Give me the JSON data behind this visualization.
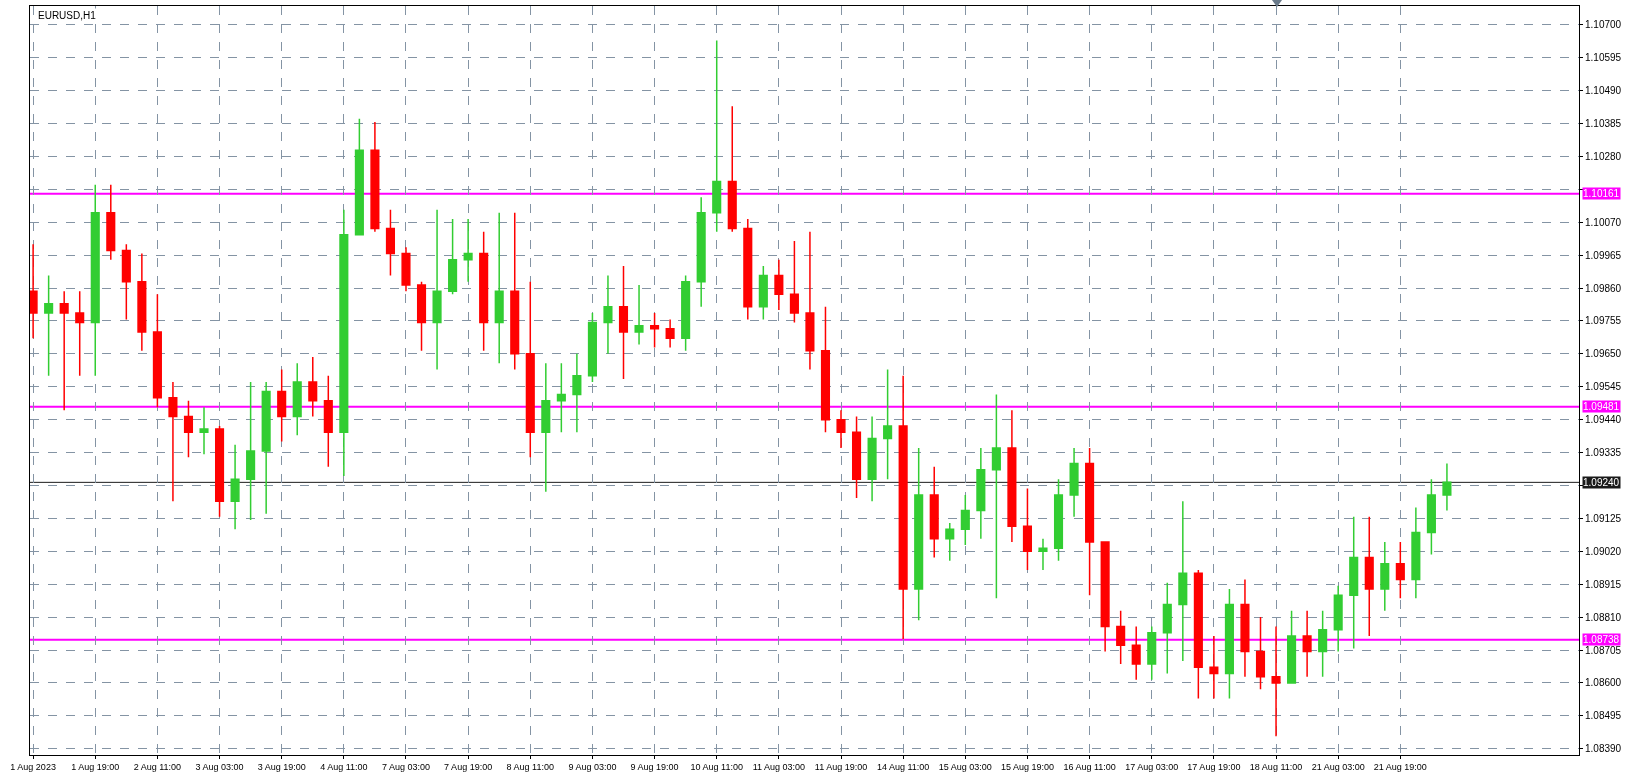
{
  "chart_data": {
    "type": "candlestick",
    "title": "EURUSD,H1",
    "categories": [
      "1 Aug 2023",
      null,
      null,
      null,
      "1 Aug 19:00",
      null,
      null,
      null,
      "2 Aug 11:00",
      null,
      null,
      null,
      "3 Aug 03:00",
      null,
      null,
      null,
      "3 Aug 19:00",
      null,
      null,
      null,
      "4 Aug 11:00",
      null,
      null,
      null,
      "7 Aug 03:00",
      null,
      null,
      null,
      "7 Aug 19:00",
      null,
      null,
      null,
      "8 Aug 11:00",
      null,
      null,
      null,
      "9 Aug 03:00",
      null,
      null,
      null,
      "9 Aug 19:00",
      null,
      null,
      null,
      "10 Aug 11:00",
      null,
      null,
      null,
      "11 Aug 03:00",
      null,
      null,
      null,
      "11 Aug 19:00",
      null,
      null,
      null,
      "14 Aug 11:00",
      null,
      null,
      null,
      "15 Aug 03:00",
      null,
      null,
      null,
      "15 Aug 19:00",
      null,
      null,
      null,
      "16 Aug 11:00",
      null,
      null,
      null,
      "17 Aug 03:00",
      null,
      null,
      null,
      "17 Aug 19:00",
      null,
      null,
      null,
      "18 Aug 11:00",
      null,
      null,
      null,
      "21 Aug 03:00",
      null,
      null,
      null,
      "21 Aug 19:00",
      null,
      null,
      null,
      null,
      null,
      null,
      null,
      null,
      null,
      null,
      null
    ],
    "ohlc": [
      [
        1.0985,
        1.1,
        1.097,
        1.0978
      ],
      [
        1.0978,
        1.099,
        1.0958,
        1.0981
      ],
      [
        1.0981,
        1.0985,
        1.0947,
        1.0978
      ],
      [
        1.0978,
        1.0985,
        1.0958,
        1.0975
      ],
      [
        1.0975,
        1.1019,
        1.0958,
        1.101
      ],
      [
        1.101,
        1.1019,
        1.0995,
        1.0998
      ],
      [
        1.0998,
        1.1,
        1.0976,
        1.0988
      ],
      [
        1.0988,
        1.0997,
        1.0966,
        1.0972
      ],
      [
        1.0972,
        1.0984,
        1.0948,
        1.0951
      ],
      [
        1.0951,
        1.0956,
        1.0918,
        1.0945
      ],
      [
        1.0945,
        1.095,
        1.0932,
        1.094
      ],
      [
        1.094,
        1.0948,
        1.0933,
        1.0941
      ],
      [
        1.0941,
        1.0942,
        1.0913,
        1.0918
      ],
      [
        1.0918,
        1.0936,
        1.0909,
        1.0925
      ],
      [
        1.0925,
        1.0956,
        1.0912,
        1.0934
      ],
      [
        1.0934,
        1.0956,
        1.0914,
        1.0953
      ],
      [
        1.0953,
        1.096,
        1.0937,
        1.0945
      ],
      [
        1.0945,
        1.0962,
        1.0939,
        1.0956
      ],
      [
        1.0956,
        1.0964,
        1.0945,
        1.095
      ],
      [
        1.095,
        1.0958,
        1.0929,
        1.094
      ],
      [
        1.094,
        1.1011,
        1.0926,
        1.1003
      ],
      [
        1.1003,
        1.104,
        1.1003,
        1.103
      ],
      [
        1.103,
        1.1039,
        1.1004,
        1.1005
      ],
      [
        1.1005,
        1.1011,
        1.099,
        1.0997
      ],
      [
        1.0997,
        1.0999,
        1.0985,
        1.0987
      ],
      [
        1.0987,
        1.0988,
        1.0966,
        1.0975
      ],
      [
        1.0975,
        1.1011,
        1.096,
        1.0985
      ],
      [
        1.0985,
        1.1008,
        1.0984,
        1.0995
      ],
      [
        1.0995,
        1.1008,
        1.0988,
        1.0997
      ],
      [
        1.0997,
        1.1004,
        1.0966,
        1.0975
      ],
      [
        1.0975,
        1.101,
        1.0962,
        1.0985
      ],
      [
        1.0985,
        1.101,
        1.096,
        1.0965
      ],
      [
        1.0965,
        1.0988,
        1.0932,
        1.094
      ],
      [
        1.094,
        1.0962,
        1.0921,
        1.095
      ],
      [
        1.095,
        1.0962,
        1.094,
        1.0952
      ],
      [
        1.0952,
        1.0965,
        1.094,
        1.0958
      ],
      [
        1.0958,
        1.0978,
        1.0956,
        1.0975
      ],
      [
        1.0975,
        1.099,
        1.0965,
        1.098
      ],
      [
        1.098,
        1.0993,
        1.0957,
        1.0972
      ],
      [
        1.0972,
        1.0987,
        1.0968,
        1.0974
      ],
      [
        1.0974,
        1.0978,
        1.0967,
        1.0973
      ],
      [
        1.0973,
        1.0976,
        1.0967,
        1.097
      ],
      [
        1.097,
        1.099,
        1.0966,
        1.0988
      ],
      [
        1.0988,
        1.1015,
        1.098,
        1.101
      ],
      [
        1.101,
        1.1065,
        1.1004,
        1.102
      ],
      [
        1.102,
        1.1044,
        1.1004,
        1.1005
      ],
      [
        1.1005,
        1.1008,
        1.0976,
        1.098
      ],
      [
        1.098,
        1.0993,
        1.0976,
        1.099
      ],
      [
        1.099,
        1.0995,
        1.0979,
        1.0984
      ],
      [
        1.0984,
        1.1001,
        1.0975,
        1.0978
      ],
      [
        1.0978,
        1.1004,
        1.096,
        1.0966
      ],
      [
        1.0966,
        1.098,
        1.094,
        1.0944
      ],
      [
        1.0944,
        1.0947,
        1.0935,
        1.094
      ],
      [
        1.094,
        1.0945,
        1.0919,
        1.0925
      ],
      [
        1.0925,
        1.0945,
        1.0918,
        1.0938
      ],
      [
        1.0938,
        1.096,
        1.0925,
        1.0942
      ],
      [
        1.0942,
        1.0958,
        1.0874,
        1.089
      ],
      [
        1.089,
        1.0935,
        1.088,
        1.092
      ],
      [
        1.092,
        1.0929,
        1.09,
        1.0906
      ],
      [
        1.0906,
        1.0911,
        1.0899,
        1.0909
      ],
      [
        1.0909,
        1.092,
        1.0904,
        1.0915
      ],
      [
        1.0915,
        1.0935,
        1.0906,
        1.0928
      ],
      [
        1.0928,
        1.0952,
        1.0887,
        1.0935
      ],
      [
        1.0935,
        1.0947,
        1.0905,
        1.091
      ],
      [
        1.091,
        1.0922,
        1.0896,
        1.0902
      ],
      [
        1.0902,
        1.0906,
        1.0896,
        1.0903
      ],
      [
        1.0903,
        1.0925,
        1.0899,
        1.092
      ],
      [
        1.092,
        1.0935,
        1.0913,
        1.093
      ],
      [
        1.093,
        1.0935,
        1.0888,
        1.0905
      ],
      [
        1.0905,
        1.0905,
        1.087,
        1.0878
      ],
      [
        1.0878,
        1.0883,
        1.0866,
        1.0872
      ],
      [
        1.0872,
        1.0878,
        1.0861,
        1.0866
      ],
      [
        1.0866,
        1.0878,
        1.0861,
        1.0876
      ],
      [
        1.0876,
        1.0892,
        1.0863,
        1.0885
      ],
      [
        1.0885,
        1.0918,
        1.0867,
        1.0895
      ],
      [
        1.0895,
        1.0896,
        1.0855,
        1.0865
      ],
      [
        1.0865,
        1.0875,
        1.0855,
        1.0863
      ],
      [
        1.0863,
        1.089,
        1.0855,
        1.0885
      ],
      [
        1.0885,
        1.0893,
        1.0862,
        1.087
      ],
      [
        1.087,
        1.0881,
        1.0858,
        1.0862
      ],
      [
        1.0862,
        1.0878,
        1.0843,
        1.086
      ],
      [
        1.086,
        1.0883,
        1.086,
        1.0875
      ],
      [
        1.0875,
        1.0883,
        1.0862,
        1.087
      ],
      [
        1.087,
        1.0883,
        1.0862,
        1.0877
      ],
      [
        1.0877,
        1.0891,
        1.087,
        1.0888
      ],
      [
        1.0888,
        1.0913,
        1.0871,
        1.09
      ],
      [
        1.09,
        1.0913,
        1.0875,
        1.089
      ],
      [
        1.089,
        1.0905,
        1.0883,
        1.0898
      ],
      [
        1.0898,
        1.0905,
        1.0887,
        1.0893
      ],
      [
        1.0893,
        1.0916,
        1.0887,
        1.0908
      ],
      [
        1.0908,
        1.0925,
        1.0901,
        1.092
      ],
      [
        1.092,
        1.093,
        1.0915,
        1.0924
      ],
      null,
      null,
      null,
      null,
      null,
      null,
      null,
      null
    ],
    "colors": [
      "#ff0000",
      "#32cd32",
      "#ff0000",
      "#ff0000",
      "#32cd32",
      "#ff0000",
      "#ff0000",
      "#ff0000",
      "#ff0000",
      "#ff0000",
      "#ff0000",
      "#32cd32",
      "#ff0000",
      "#32cd32",
      "#32cd32",
      "#32cd32",
      "#ff0000",
      "#32cd32",
      "#ff0000",
      "#ff0000",
      "#32cd32",
      "#32cd32",
      "#ff0000",
      "#ff0000",
      "#ff0000",
      "#ff0000",
      "#32cd32",
      "#32cd32",
      "#32cd32",
      "#ff0000",
      "#32cd32",
      "#ff0000",
      "#ff0000",
      "#32cd32",
      "#32cd32",
      "#32cd32",
      "#32cd32",
      "#32cd32",
      "#ff0000",
      "#32cd32",
      "#ff0000",
      "#ff0000",
      "#32cd32",
      "#32cd32",
      "#32cd32",
      "#ff0000",
      "#ff0000",
      "#32cd32",
      "#ff0000",
      "#ff0000",
      "#ff0000",
      "#ff0000",
      "#ff0000",
      "#ff0000",
      "#32cd32",
      "#32cd32",
      "#ff0000",
      "#32cd32",
      "#ff0000",
      "#32cd32",
      "#32cd32",
      "#32cd32",
      "#32cd32",
      "#ff0000",
      "#ff0000",
      "#32cd32",
      "#32cd32",
      "#32cd32",
      "#ff0000",
      "#ff0000",
      "#ff0000",
      "#ff0000",
      "#32cd32",
      "#32cd32",
      "#32cd32",
      "#ff0000",
      "#ff0000",
      "#32cd32",
      "#ff0000",
      "#ff0000",
      "#ff0000",
      "#32cd32",
      "#ff0000",
      "#32cd32",
      "#32cd32",
      "#32cd32",
      "#ff0000",
      "#32cd32",
      "#ff0000",
      "#32cd32",
      "#32cd32",
      "#32cd32",
      null,
      null,
      null,
      null,
      null,
      null,
      null,
      null
    ],
    "ylim": [
      1.0837,
      1.1076
    ],
    "yticks": [
      {
        "value": 1.0839,
        "label": "1.08390"
      },
      {
        "value": 1.08495,
        "label": "1.08495"
      },
      {
        "value": 1.086,
        "label": "1.08600"
      },
      {
        "value": 1.08705,
        "label": "1.08705"
      },
      {
        "value": 1.0881,
        "label": "1.08810"
      },
      {
        "value": 1.08915,
        "label": "1.08915"
      },
      {
        "value": 1.0902,
        "label": "1.09020"
      },
      {
        "value": 1.09125,
        "label": "1.09125"
      },
      {
        "value": 1.0923,
        "label": null
      },
      {
        "value": 1.09335,
        "label": "1.09335"
      },
      {
        "value": 1.0944,
        "label": "1.09440"
      },
      {
        "value": 1.09545,
        "label": "1.09545"
      },
      {
        "value": 1.0965,
        "label": "1.09650"
      },
      {
        "value": 1.09755,
        "label": "1.09755"
      },
      {
        "value": 1.0986,
        "label": "1.09860"
      },
      {
        "value": 1.09965,
        "label": "1.09965"
      },
      {
        "value": 1.1007,
        "label": "1.10070"
      },
      {
        "value": 1.10175,
        "label": null
      },
      {
        "value": 1.1028,
        "label": "1.10280"
      },
      {
        "value": 1.10385,
        "label": "1.10385"
      },
      {
        "value": 1.1049,
        "label": "1.10490"
      },
      {
        "value": 1.10595,
        "label": "1.10595"
      },
      {
        "value": 1.107,
        "label": "1.10700"
      }
    ],
    "ref_lines": [
      {
        "axis": "y",
        "value": 1.10161,
        "label": "1.10161",
        "color": "#ff00ff"
      },
      {
        "axis": "y",
        "value": 1.09481,
        "label": "1.09481",
        "color": "#ff00ff"
      },
      {
        "axis": "y",
        "value": 1.0924,
        "label": "1.09240",
        "color": "#1a1a1a"
      },
      {
        "axis": "y",
        "value": 1.08738,
        "label": "1.08738",
        "color": "#ff00ff"
      }
    ],
    "grid": true
  }
}
